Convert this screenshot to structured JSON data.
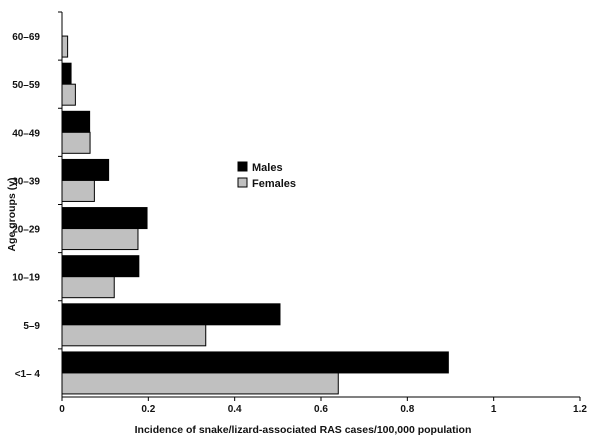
{
  "chart_data": {
    "type": "bar",
    "orientation": "horizontal",
    "title": "",
    "xlabel": "Incidence of snake/lizard-associated RAS cases/100,000 population",
    "ylabel": "Age groups (y)",
    "categories": [
      "<1– 4",
      "5–9",
      "10–19",
      "20–29",
      "30–39",
      "40–49",
      "50–59",
      "60–69"
    ],
    "series": [
      {
        "name": "Males",
        "color": "#000000",
        "values": [
          0.895,
          0.505,
          0.178,
          0.197,
          0.108,
          0.064,
          0.021,
          null
        ]
      },
      {
        "name": "Females",
        "color": "#c0c0c0",
        "values": [
          0.64,
          0.333,
          0.121,
          0.176,
          0.075,
          0.065,
          0.031,
          0.013
        ]
      }
    ],
    "xlim": [
      0,
      1.2
    ],
    "xticks": [
      "0",
      "0.2",
      "0.4",
      "0.6",
      "0.8",
      "1",
      "1.2"
    ],
    "grid": false,
    "legend_position": "center"
  }
}
